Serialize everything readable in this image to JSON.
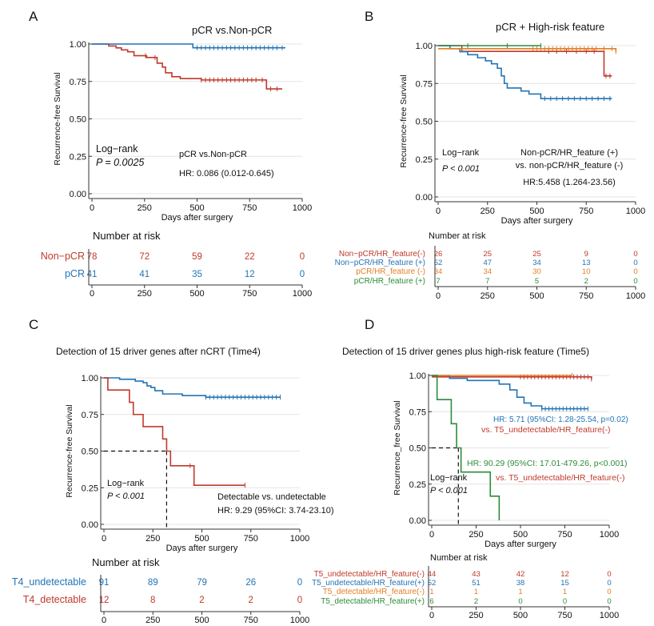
{
  "axis": {
    "y_label": "Recurrence-free Survival",
    "x_label": "Days after surgery",
    "y_ticks": [
      "0.00",
      "0.25",
      "0.50",
      "0.75",
      "1.00"
    ],
    "x_ticks": [
      "0",
      "250",
      "500",
      "750",
      "1000"
    ],
    "risk_title": "Number at risk"
  },
  "chart_data": [
    {
      "panel": "A",
      "type": "line",
      "title": "pCR vs.Non-pCR",
      "xlabel": "Days after surgery",
      "ylabel": "Recurrence-free Survival",
      "xlim": [
        0,
        1000
      ],
      "ylim": [
        0,
        1
      ],
      "stat_lines": [
        "Log−rank",
        "P = 0.0025"
      ],
      "hr_lines": [
        "pCR vs.Non-pCR",
        "HR: 0.086 (0.012-0.645)"
      ],
      "series": [
        {
          "name": "Non−pCR",
          "color": "#c0392b",
          "x": [
            0,
            80,
            115,
            140,
            170,
            200,
            260,
            310,
            335,
            350,
            380,
            420,
            470,
            520,
            830,
            860,
            905
          ],
          "y": [
            1.0,
            0.987,
            0.974,
            0.961,
            0.948,
            0.922,
            0.91,
            0.872,
            0.846,
            0.808,
            0.782,
            0.769,
            0.769,
            0.76,
            0.7,
            0.7,
            0.7
          ],
          "censor_x": [
            255,
            300,
            520,
            540,
            560,
            580,
            600,
            620,
            640,
            660,
            680,
            700,
            720,
            740,
            760,
            780,
            810,
            850,
            880
          ]
        },
        {
          "name": "pCR",
          "color": "#2274b5",
          "x": [
            0,
            480,
            920
          ],
          "y": [
            1.0,
            0.975,
            0.975
          ],
          "censor_x": [
            500,
            520,
            540,
            560,
            580,
            600,
            620,
            640,
            660,
            680,
            700,
            720,
            740,
            760,
            780,
            800,
            820,
            840,
            860,
            880,
            905
          ]
        }
      ],
      "risk": {
        "rows": [
          {
            "label": "Non−pCR",
            "color": "#c0392b",
            "values": [
              "78",
              "72",
              "59",
              "22",
              "0"
            ]
          },
          {
            "label": "pCR",
            "color": "#2274b5",
            "values": [
              "41",
              "41",
              "35",
              "12",
              "0"
            ]
          }
        ]
      }
    },
    {
      "panel": "B",
      "type": "line",
      "title": "pCR + High-risk feature",
      "xlabel": "Days after surgery",
      "ylabel": "Recurrence-free Survival",
      "xlim": [
        0,
        1000
      ],
      "ylim": [
        0,
        1
      ],
      "stat_lines": [
        "Log−rank",
        "P < 0.001"
      ],
      "hr_lines": [
        "Non-pCR/HR_feature (+)",
        "vs. non-pCR/HR_feature (-)",
        "HR:5.458 (1.264-23.56)"
      ],
      "series": [
        {
          "name": "Non−pCR/HR_feature(-)",
          "color": "#c0392b",
          "x": [
            0,
            120,
            820,
            840,
            880
          ],
          "y": [
            1.0,
            0.962,
            0.962,
            0.8,
            0.8
          ],
          "censor_x": [
            560,
            600,
            650,
            700,
            750,
            790,
            850,
            870
          ]
        },
        {
          "name": "Non−pCR/HR_feature (+)",
          "color": "#2274b5",
          "x": [
            0,
            60,
            110,
            150,
            200,
            240,
            270,
            300,
            320,
            335,
            350,
            420,
            460,
            520,
            880
          ],
          "y": [
            1.0,
            0.98,
            0.96,
            0.94,
            0.92,
            0.9,
            0.88,
            0.85,
            0.8,
            0.75,
            0.72,
            0.7,
            0.68,
            0.65,
            0.65
          ],
          "censor_x": [
            540,
            570,
            600,
            630,
            660,
            690,
            720,
            750,
            780,
            810,
            840,
            870
          ]
        },
        {
          "name": "pCR/HR_feature (-)",
          "color": "#e67e22",
          "x": [
            0,
            900
          ],
          "y": [
            0.98,
            0.96
          ],
          "censor_x": [
            480,
            500,
            520,
            540,
            560,
            580,
            600,
            620,
            640,
            660,
            680,
            700,
            720,
            740,
            760,
            780,
            800,
            840,
            880,
            900
          ]
        },
        {
          "name": "pCR/HR_feature (+)",
          "color": "#2e8b3a",
          "x": [
            0,
            520
          ],
          "y": [
            1.0,
            1.0
          ],
          "censor_x": [
            150,
            350,
            520
          ]
        }
      ],
      "risk": {
        "rows": [
          {
            "label": "Non−pCR/HR_feature(-)",
            "color": "#c0392b",
            "values": [
              "26",
              "25",
              "25",
              "9",
              "0"
            ]
          },
          {
            "label": "Non−pCR/HR_feature (+)",
            "color": "#2274b5",
            "values": [
              "52",
              "47",
              "34",
              "13",
              "0"
            ]
          },
          {
            "label": "pCR/HR_feature (-)",
            "color": "#e67e22",
            "values": [
              "34",
              "34",
              "30",
              "10",
              "0"
            ]
          },
          {
            "label": "pCR/HR_feature (+)",
            "color": "#2e8b3a",
            "values": [
              "7",
              "7",
              "5",
              "2",
              "0"
            ]
          }
        ]
      }
    },
    {
      "panel": "C",
      "type": "line",
      "title": "Detection of 15 driver genes after nCRT (Time4)",
      "xlabel": "Days after surgery",
      "ylabel": "Recurrence-free Survival",
      "xlim": [
        0,
        1000
      ],
      "ylim": [
        0,
        1
      ],
      "stat_lines": [
        "Log−rank",
        "P < 0.001"
      ],
      "hr_lines": [
        "Detectable vs. undetectable",
        "HR: 9.29 (95%CI: 3.74-23.10)"
      ],
      "median_x": 320,
      "series": [
        {
          "name": "T4_undetectable",
          "color": "#2274b5",
          "x": [
            0,
            80,
            160,
            200,
            220,
            240,
            260,
            300,
            400,
            520,
            900
          ],
          "y": [
            1.0,
            0.99,
            0.978,
            0.967,
            0.945,
            0.934,
            0.912,
            0.89,
            0.879,
            0.868,
            0.868
          ],
          "censor_x": [
            520,
            540,
            560,
            580,
            600,
            620,
            640,
            660,
            680,
            700,
            720,
            740,
            760,
            780,
            800,
            820,
            840,
            860,
            880,
            900
          ]
        },
        {
          "name": "T4_detectable",
          "color": "#c0392b",
          "x": [
            0,
            20,
            50,
            130,
            150,
            200,
            300,
            320,
            340,
            420,
            460,
            720
          ],
          "y": [
            1.0,
            0.917,
            0.917,
            0.833,
            0.75,
            0.667,
            0.583,
            0.5,
            0.4,
            0.4,
            0.267,
            0.267
          ],
          "censor_x": [
            440,
            720
          ]
        }
      ],
      "risk": {
        "rows": [
          {
            "label": "T4_undetectable",
            "color": "#2274b5",
            "values": [
              "91",
              "89",
              "79",
              "26",
              "0"
            ]
          },
          {
            "label": "T4_detectable",
            "color": "#c0392b",
            "values": [
              "12",
              "8",
              "2",
              "2",
              "0"
            ]
          }
        ]
      }
    },
    {
      "panel": "D",
      "type": "line",
      "title": "Detection of 15 driver genes plus high-risk feature (Time5)",
      "xlabel": "Days after surgery",
      "ylabel": "Recurrence_free Survival",
      "xlim": [
        0,
        1000
      ],
      "ylim": [
        0,
        1
      ],
      "stat_lines": [
        "Log−rank",
        "P < 0.001"
      ],
      "hr_blue": [
        "HR: 5.71 (95%CI: 1.28-25.54, p=0.02)",
        "vs. T5_undetectable/HR_feature(-)"
      ],
      "hr_green": [
        "HR: 90.29 (95%CI: 17.01-479.26, p<0.001)",
        "vs. T5_undetectable/HR_feature(-)"
      ],
      "median_x": 150,
      "series": [
        {
          "name": "T5_undetectable/HR_feature(-)",
          "color": "#c0392b",
          "x": [
            0,
            900
          ],
          "y": [
            0.99,
            0.975
          ],
          "censor_x": [
            500,
            520,
            540,
            560,
            580,
            600,
            620,
            640,
            660,
            680,
            700,
            720,
            740,
            760,
            780,
            800,
            820,
            840,
            860,
            880,
            900
          ]
        },
        {
          "name": "T5_undetectable/HR_feature(+)",
          "color": "#2274b5",
          "x": [
            0,
            100,
            200,
            380,
            440,
            480,
            520,
            560,
            620,
            880
          ],
          "y": [
            1.0,
            0.98,
            0.965,
            0.94,
            0.9,
            0.85,
            0.81,
            0.79,
            0.77,
            0.77
          ],
          "censor_x": [
            620,
            640,
            660,
            680,
            700,
            720,
            740,
            760,
            780,
            800,
            820,
            840,
            860,
            880
          ]
        },
        {
          "name": "T5_detectable/HR_feature(-)",
          "color": "#e67e22",
          "x": [
            0,
            790
          ],
          "y": [
            1.0,
            1.0
          ],
          "censor_x": [
            790
          ]
        },
        {
          "name": "T5_detectable/HR_feature(+)",
          "color": "#2e8b3a",
          "x": [
            0,
            30,
            110,
            140,
            165,
            330,
            380
          ],
          "y": [
            1.0,
            0.833,
            0.667,
            0.5,
            0.333,
            0.167,
            0.0
          ],
          "censor_x": []
        }
      ],
      "risk": {
        "rows": [
          {
            "label": "T5_undetectable/HR_feature(-)",
            "color": "#c0392b",
            "values": [
              "44",
              "43",
              "42",
              "12",
              "0"
            ]
          },
          {
            "label": "T5_undetectable/HR_feature(+)",
            "color": "#2274b5",
            "values": [
              "52",
              "51",
              "38",
              "15",
              "0"
            ]
          },
          {
            "label": "T5_detectable/HR_feature(-)",
            "color": "#e67e22",
            "values": [
              "1",
              "1",
              "1",
              "1",
              "0"
            ]
          },
          {
            "label": "T5_detectable/HR_feature(+)",
            "color": "#2e8b3a",
            "values": [
              "6",
              "2",
              "0",
              "0",
              "0"
            ]
          }
        ]
      }
    }
  ]
}
